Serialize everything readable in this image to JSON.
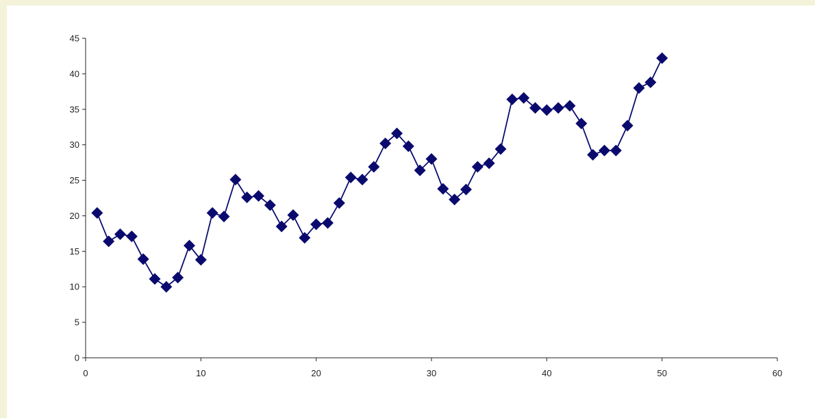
{
  "chart_data": {
    "type": "line",
    "title": "",
    "xlabel": "",
    "ylabel": "",
    "xlim": [
      0,
      60
    ],
    "ylim": [
      0,
      45
    ],
    "x_ticks": [
      0,
      10,
      20,
      30,
      40,
      50,
      60
    ],
    "y_ticks": [
      0,
      5,
      10,
      15,
      20,
      25,
      30,
      35,
      40,
      45
    ],
    "grid": false,
    "legend": "none",
    "marker": "diamond",
    "color": "#0a0a6e",
    "series": [
      {
        "x": [
          1,
          2,
          3,
          4,
          5,
          6,
          7,
          8,
          9,
          10,
          11,
          12,
          13,
          14,
          15,
          16,
          17,
          18,
          19,
          20,
          21,
          22,
          23,
          24,
          25,
          26,
          27,
          28,
          29,
          30,
          31,
          32,
          33,
          34,
          35,
          36,
          37,
          38,
          39,
          40,
          41,
          42,
          43,
          44,
          45,
          46,
          47,
          48,
          49,
          50
        ],
        "y": [
          20.4,
          16.4,
          17.4,
          17.1,
          13.9,
          11.1,
          10.0,
          11.3,
          15.8,
          13.8,
          20.4,
          19.9,
          25.1,
          22.6,
          22.8,
          21.5,
          18.5,
          20.1,
          16.9,
          18.8,
          19.0,
          21.8,
          25.4,
          25.1,
          26.9,
          30.2,
          31.6,
          29.8,
          26.4,
          28.0,
          23.8,
          22.3,
          23.7,
          26.9,
          27.4,
          29.4,
          36.4,
          36.6,
          35.2,
          34.9,
          35.2,
          35.5,
          33.0,
          28.6,
          29.2,
          29.2,
          32.7,
          38.0,
          38.8,
          42.2
        ]
      }
    ]
  }
}
